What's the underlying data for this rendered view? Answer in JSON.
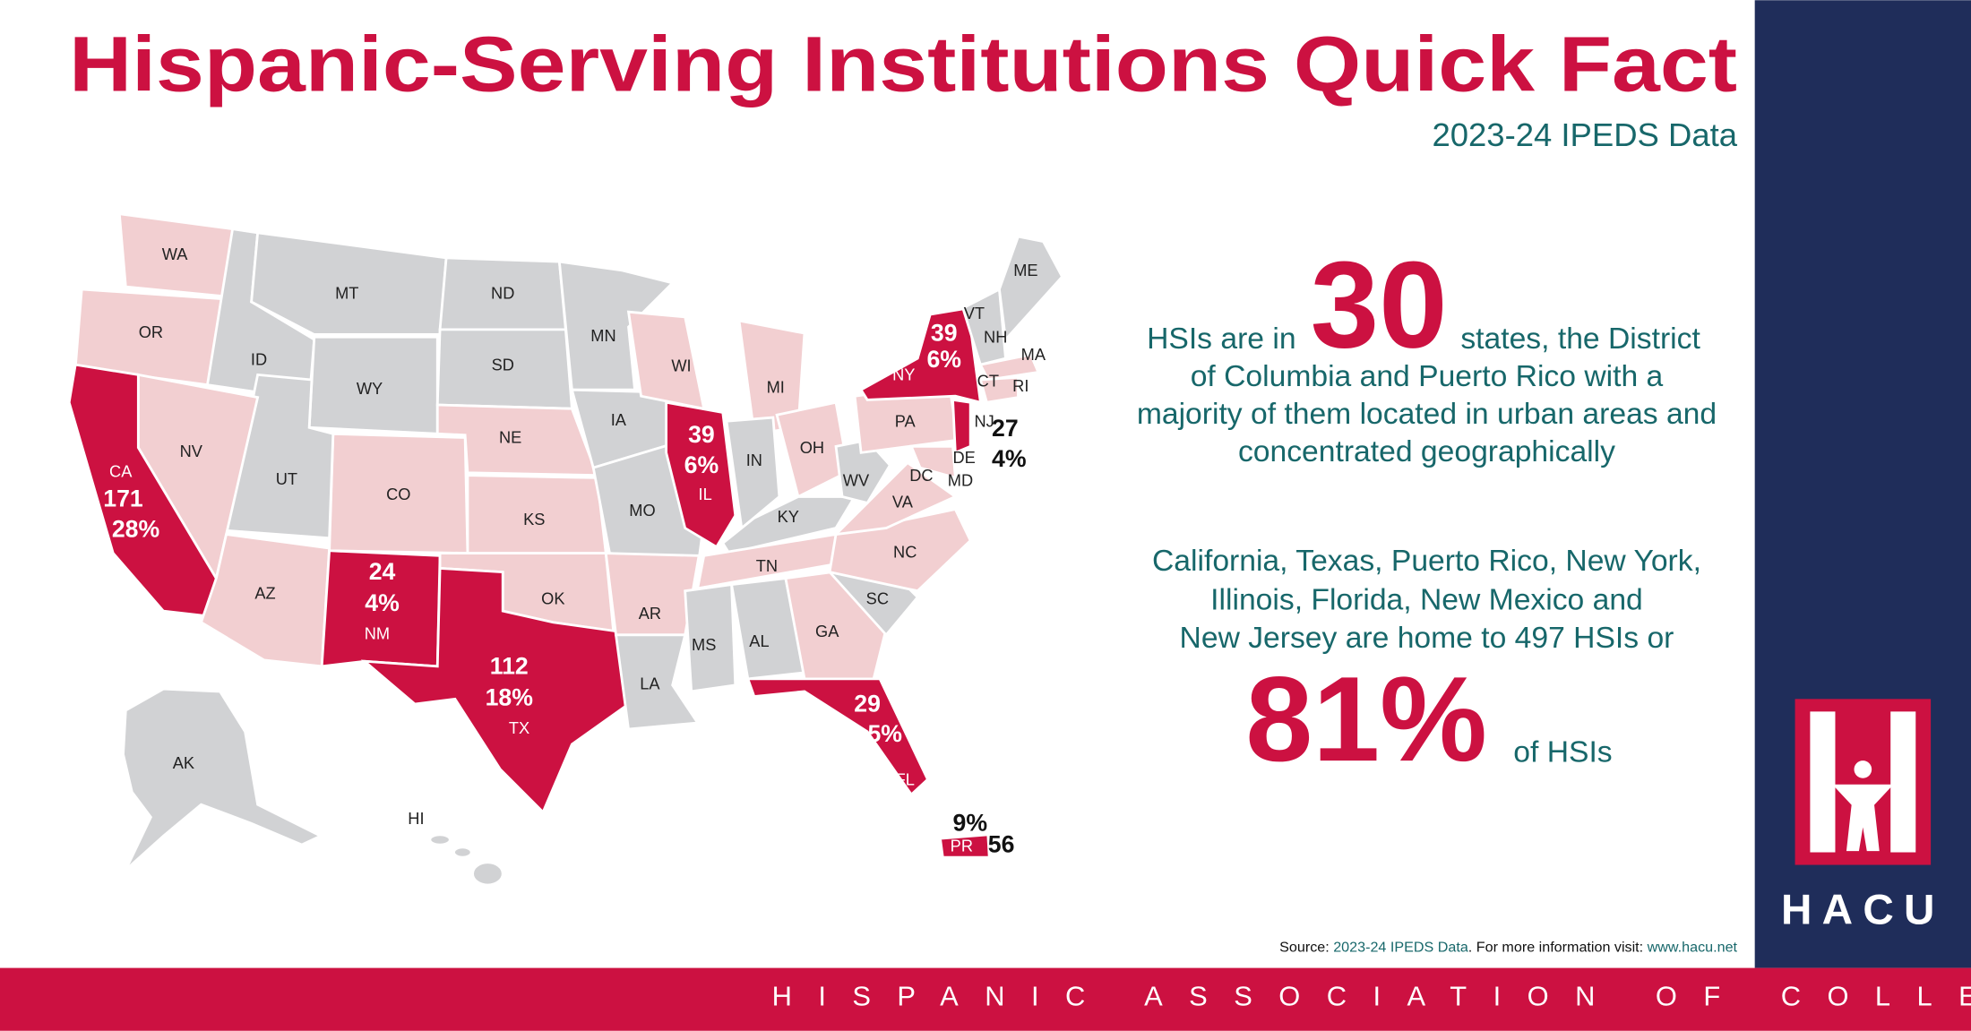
{
  "header": {
    "title": "Hispanic-Serving Institutions Quick Fact",
    "subtitle": "2023-24 IPEDS Data"
  },
  "map": {
    "states": [
      "WA",
      "OR",
      "ID",
      "MT",
      "WY",
      "ND",
      "SD",
      "NE",
      "CO",
      "UT",
      "NV",
      "AZ",
      "KS",
      "OK",
      "MN",
      "IA",
      "MO",
      "AR",
      "LA",
      "WI",
      "MI",
      "IN",
      "OH",
      "KY",
      "TN",
      "MS",
      "AL",
      "GA",
      "SC",
      "NC",
      "VA",
      "WV",
      "PA",
      "DC",
      "DE",
      "MD",
      "VT",
      "NH",
      "ME",
      "MA",
      "CT",
      "RI",
      "AK",
      "HI"
    ],
    "callouts": [
      {
        "state": "CA",
        "count": "171",
        "share": "28%"
      },
      {
        "state": "NM",
        "count": "24",
        "share": "4%"
      },
      {
        "state": "TX",
        "count": "112",
        "share": "18%"
      },
      {
        "state": "IL",
        "count": "39",
        "share": "6%"
      },
      {
        "state": "NY",
        "count": "39",
        "share": "6%"
      },
      {
        "state": "NJ",
        "count": "27",
        "share": "4%"
      },
      {
        "state": "FL",
        "count": "29",
        "share": "5%"
      },
      {
        "state": "PR",
        "count": "56",
        "share": "9%"
      }
    ]
  },
  "facts": {
    "states_before": "HSIs are in",
    "states_count": "30",
    "states_after": "states, the District",
    "lines": [
      "of Columbia and Puerto Rico with a",
      "majority of them located in urban areas and",
      "concentrated geographically"
    ],
    "para2": [
      "California, Texas, Puerto Rico, New York,",
      "Illinois, Florida, New Mexico and",
      "New Jersey are home to 497 HSIs or"
    ],
    "share": "81%",
    "share_suffix": "of HSIs"
  },
  "source": {
    "prefix": "Source: ",
    "dataset": "2023-24 IPEDS Data",
    "middle": ". For more information visit: ",
    "url": "www.hacu.net"
  },
  "logo": "HACU",
  "footer": "HISPANIC ASSOCIATION OF COLLEGES & UNIVERSITIES"
}
